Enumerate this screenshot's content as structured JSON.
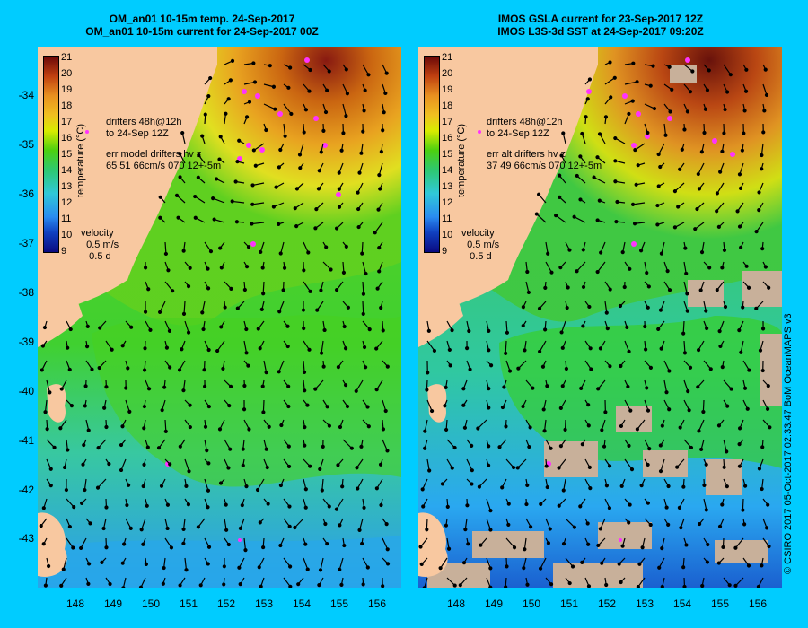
{
  "colors": {
    "background": "#00ccff",
    "land": "#f8c8a0",
    "drifter": "#ff33ff",
    "missing": "#c8b09a"
  },
  "left": {
    "title_line1": "OM_an01 10-15m temp. 24-Sep-2017",
    "title_line2": "OM_an01 10-15m current for 24-Sep-2017 00Z",
    "drifters": "drifters 48h@12h\nto 24-Sep 12Z",
    "err": "err model drifters hv z\n65 51 66cm/s 070 12+-5m",
    "velocity": "velocity\n  0.5 m/s\n   0.5 d"
  },
  "right": {
    "title_line1": "IMOS GSLA current for 23-Sep-2017 12Z",
    "title_line2": "IMOS L3S-3d SST at 24-Sep-2017 09:20Z",
    "drifters": "drifters 48h@12h\nto 24-Sep 12Z",
    "err": "err alt drifters hv z\n37 49 66cm/s 070 12+-5m",
    "velocity": "velocity\n  0.5 m/s\n   0.5 d"
  },
  "colorbar": {
    "label": "temperature (°C)",
    "ticks": [
      "21",
      "20",
      "19",
      "18",
      "17",
      "16",
      "15",
      "14",
      "13",
      "12",
      "11",
      "10",
      "9"
    ]
  },
  "lat_ticks": [
    "-34",
    "-35",
    "-36",
    "-37",
    "-38",
    "-39",
    "-40",
    "-41",
    "-42",
    "-43"
  ],
  "lon_ticks": [
    "148",
    "149",
    "150",
    "151",
    "152",
    "153",
    "154",
    "155",
    "156"
  ],
  "credit": "© CSIRO 2017   05-Oct-2017 02:33:47 BoM OceanMAPS v3"
}
